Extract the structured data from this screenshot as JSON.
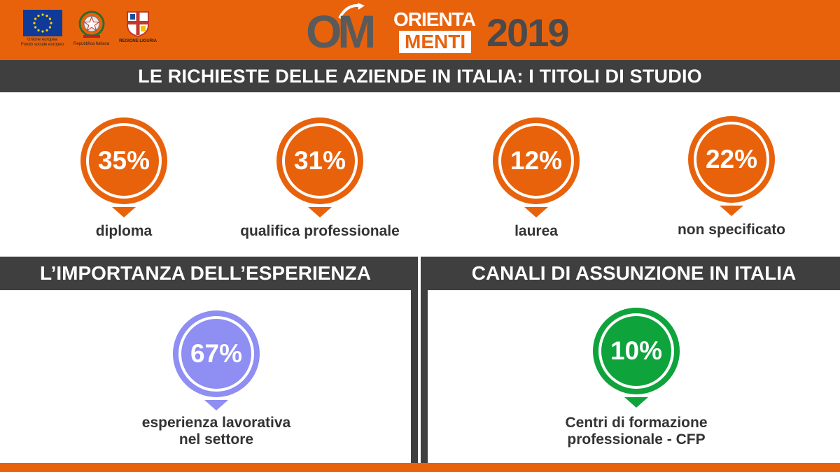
{
  "header": {
    "logos": [
      {
        "name": "eu-flag",
        "caption": "Unione europea\nFondo sociale europeo"
      },
      {
        "name": "italian-republic-emblem",
        "caption": "Repubblica Italiana"
      },
      {
        "name": "liguria-region-shield",
        "caption": "REGIONE LIGURIA"
      }
    ],
    "brand": {
      "om": "OM",
      "orienta": "ORIENTA",
      "menti": "MENTI",
      "year": "2019"
    }
  },
  "title": "LE RICHIESTE DELLE AZIENDE IN ITALIA: I TITOLI DI STUDIO",
  "stats": [
    {
      "value": "35%",
      "label": "diploma"
    },
    {
      "value": "31%",
      "label": "qualifica professionale"
    },
    {
      "value": "12%",
      "label": "laurea"
    },
    {
      "value": "22%",
      "label": "non specificato"
    }
  ],
  "experience": {
    "heading": "L’IMPORTANZA DELL’ESPERIENZA",
    "value": "67%",
    "label_line1": "esperienza lavorativa",
    "label_line2": "nel settore"
  },
  "channels": {
    "heading": "CANALI DI ASSUNZIONE IN ITALIA",
    "value": "10%",
    "label_line1": "Centri di formazione",
    "label_line2": "professionale - CFP"
  },
  "colors": {
    "orange": "#e8620c",
    "dark": "#3f3f3f",
    "purple": "#8f8ef2",
    "green": "#0fa33c"
  }
}
